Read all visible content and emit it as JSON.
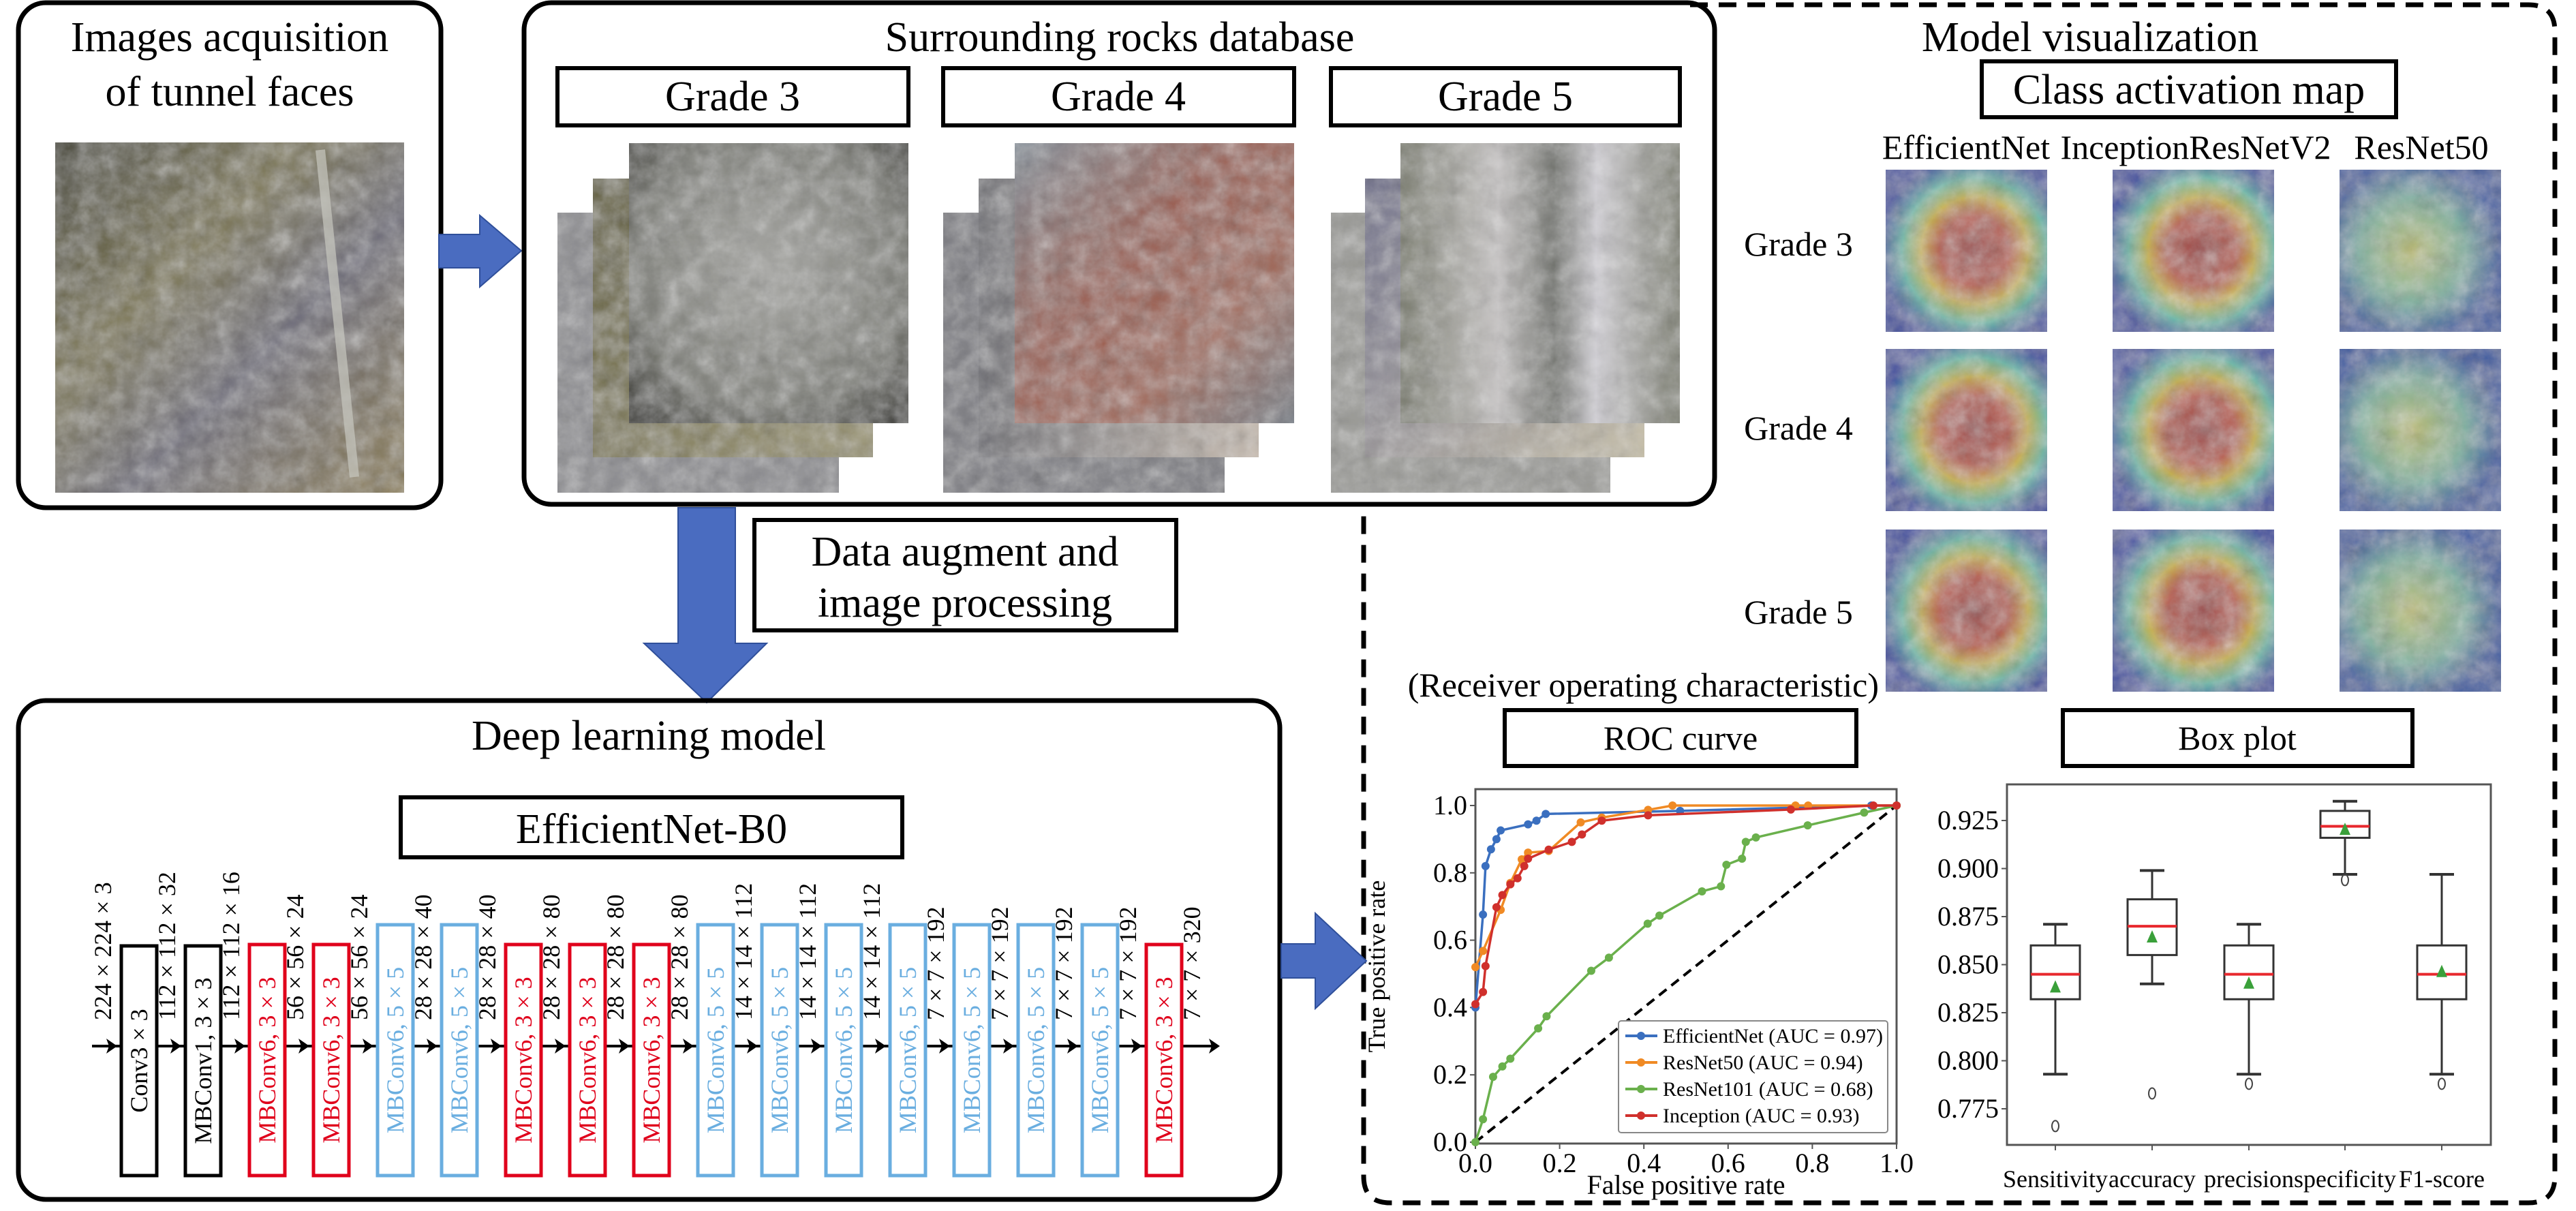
{
  "acquisition": {
    "title_line1": "Images acquisition",
    "title_line2": "of tunnel faces"
  },
  "database": {
    "title": "Surrounding rocks database",
    "grades": [
      "Grade 3",
      "Grade 4",
      "Grade 5"
    ]
  },
  "augment": {
    "line1": "Data augment and",
    "line2": "image processing"
  },
  "model": {
    "title": "Deep learning model",
    "network": "EfficientNet-B0",
    "input_size": "224 × 224 × 3",
    "layers": [
      {
        "label": "Conv3 × 3",
        "kind": "conv",
        "color": "#000000",
        "output": "112 × 112 × 32"
      },
      {
        "label": "MBConv1, 3 × 3",
        "kind": "conv",
        "color": "#000000",
        "output": "112 × 112 × 16"
      },
      {
        "label": "MBConv6, 3 × 3",
        "kind": "mb3",
        "color": "#e0001b",
        "output": "56 × 56 × 24"
      },
      {
        "label": "MBConv6, 3 × 3",
        "kind": "mb3",
        "color": "#e0001b",
        "output": "56 × 56 × 24"
      },
      {
        "label": "MBConv6, 5 × 5",
        "kind": "mb5",
        "color": "#6aaee0",
        "output": "28 × 28 × 40"
      },
      {
        "label": "MBConv6, 5 × 5",
        "kind": "mb5",
        "color": "#6aaee0",
        "output": "28 × 28 × 40"
      },
      {
        "label": "MBConv6, 3 × 3",
        "kind": "mb3",
        "color": "#e0001b",
        "output": "28 × 28 × 80"
      },
      {
        "label": "MBConv6, 3 × 3",
        "kind": "mb3",
        "color": "#e0001b",
        "output": "28 × 28 × 80"
      },
      {
        "label": "MBConv6, 3 × 3",
        "kind": "mb3",
        "color": "#e0001b",
        "output": "28 × 28 × 80"
      },
      {
        "label": "MBConv6, 5 × 5",
        "kind": "mb5",
        "color": "#6aaee0",
        "output": "14 × 14 × 112"
      },
      {
        "label": "MBConv6, 5 × 5",
        "kind": "mb5",
        "color": "#6aaee0",
        "output": "14 × 14 × 112"
      },
      {
        "label": "MBConv6, 5 × 5",
        "kind": "mb5",
        "color": "#6aaee0",
        "output": "14 × 14 × 112"
      },
      {
        "label": "MBConv6, 5 × 5",
        "kind": "mb5",
        "color": "#6aaee0",
        "output": "7 × 7 × 192"
      },
      {
        "label": "MBConv6, 5 × 5",
        "kind": "mb5",
        "color": "#6aaee0",
        "output": "7 × 7 × 192"
      },
      {
        "label": "MBConv6, 5 × 5",
        "kind": "mb5",
        "color": "#6aaee0",
        "output": "7 × 7 × 192"
      },
      {
        "label": "MBConv6, 5 × 5",
        "kind": "mb5",
        "color": "#6aaee0",
        "output": "7 × 7 × 192"
      },
      {
        "label": "MBConv6, 3 × 3",
        "kind": "mb3",
        "color": "#e0001b",
        "output": "7 × 7 × 320"
      }
    ]
  },
  "visualization": {
    "title": "Model visualization",
    "cam_title": "Class activation map",
    "models": [
      "EfficientNet",
      "InceptionResNetV2",
      "ResNet50"
    ],
    "grades": [
      "Grade 3",
      "Grade 4",
      "Grade 5"
    ]
  },
  "roc_caption": "(Receiver operating characteristic)",
  "colors": {
    "arrow": "#4a6cc0",
    "red_block": "#e0001b",
    "blue_block": "#6aaee0"
  },
  "chart_data": [
    {
      "type": "line",
      "title": "ROC curve",
      "xlabel": "False positive rate",
      "ylabel": "True positive rate",
      "xlim": [
        0,
        1
      ],
      "ylim": [
        0,
        1
      ],
      "xticks": [
        "0.0",
        "0.2",
        "0.4",
        "0.6",
        "0.8",
        "1.0"
      ],
      "yticks": [
        "0.0",
        "0.2",
        "0.4",
        "0.6",
        "0.8",
        "1.0"
      ],
      "legend": "bottom-right",
      "reference_line": "diagonal dashed",
      "series": [
        {
          "name": "EfficientNet (AUC = 0.97)",
          "color": "#3a6fbf",
          "points": [
            [
              0,
              0.4
            ],
            [
              0.018,
              0.676
            ],
            [
              0.024,
              0.82
            ],
            [
              0.037,
              0.87
            ],
            [
              0.05,
              0.9
            ],
            [
              0.06,
              0.926
            ],
            [
              0.125,
              0.944
            ],
            [
              0.145,
              0.955
            ],
            [
              0.167,
              0.975
            ],
            [
              0.486,
              0.984
            ],
            [
              0.94,
              1.0
            ],
            [
              1,
              1
            ]
          ]
        },
        {
          "name": "ResNet50 (AUC = 0.94)",
          "color": "#f08a24",
          "points": [
            [
              0,
              0.52
            ],
            [
              0.018,
              0.568
            ],
            [
              0.06,
              0.69
            ],
            [
              0.083,
              0.77
            ],
            [
              0.11,
              0.84
            ],
            [
              0.125,
              0.86
            ],
            [
              0.174,
              0.865
            ],
            [
              0.25,
              0.95
            ],
            [
              0.3,
              0.964
            ],
            [
              0.41,
              0.987
            ],
            [
              0.468,
              1.0
            ],
            [
              0.76,
              1.0
            ],
            [
              0.79,
              1.0
            ],
            [
              1,
              1
            ]
          ]
        },
        {
          "name": "ResNet101 (AUC = 0.68)",
          "color": "#6ab04c",
          "points": [
            [
              0,
              0
            ],
            [
              0.018,
              0.068
            ],
            [
              0.042,
              0.194
            ],
            [
              0.064,
              0.225
            ],
            [
              0.083,
              0.248
            ],
            [
              0.149,
              0.338
            ],
            [
              0.169,
              0.374
            ],
            [
              0.275,
              0.509
            ],
            [
              0.317,
              0.548
            ],
            [
              0.409,
              0.649
            ],
            [
              0.437,
              0.673
            ],
            [
              0.538,
              0.745
            ],
            [
              0.583,
              0.76
            ],
            [
              0.596,
              0.824
            ],
            [
              0.633,
              0.842
            ],
            [
              0.642,
              0.892
            ],
            [
              0.666,
              0.905
            ],
            [
              0.789,
              0.941
            ],
            [
              0.923,
              0.979
            ],
            [
              1,
              1
            ]
          ]
        },
        {
          "name": "Inception (AUC = 0.93)",
          "color": "#d0302c",
          "points": [
            [
              0,
              0.41
            ],
            [
              0.018,
              0.446
            ],
            [
              0.024,
              0.523
            ],
            [
              0.05,
              0.698
            ],
            [
              0.064,
              0.734
            ],
            [
              0.083,
              0.766
            ],
            [
              0.1,
              0.784
            ],
            [
              0.116,
              0.82
            ],
            [
              0.125,
              0.842
            ],
            [
              0.174,
              0.869
            ],
            [
              0.229,
              0.892
            ],
            [
              0.253,
              0.914
            ],
            [
              0.3,
              0.955
            ],
            [
              0.41,
              0.971
            ],
            [
              0.749,
              0.988
            ],
            [
              0.945,
              1.0
            ],
            [
              1,
              1
            ]
          ]
        }
      ]
    },
    {
      "type": "box",
      "title": "Box plot",
      "categories": [
        "Sensitivity",
        "accuracy",
        "precision",
        "specificity",
        "F1-score"
      ],
      "ylim": [
        0.762,
        0.943
      ],
      "yticks": [
        "0.775",
        "0.800",
        "0.825",
        "0.850",
        "0.875",
        "0.900",
        "0.925"
      ],
      "median_color": "#e8282d",
      "mean_color": "#3aa03a",
      "boxes": [
        {
          "whisker_low": 0.793,
          "q1": 0.832,
          "median": 0.845,
          "q3": 0.86,
          "whisker_high": 0.871,
          "mean": 0.838,
          "outliers": [
            0.766
          ]
        },
        {
          "whisker_low": 0.84,
          "q1": 0.855,
          "median": 0.87,
          "q3": 0.884,
          "whisker_high": 0.899,
          "mean": 0.864,
          "outliers": [
            0.783
          ]
        },
        {
          "whisker_low": 0.793,
          "q1": 0.832,
          "median": 0.845,
          "q3": 0.86,
          "whisker_high": 0.871,
          "mean": 0.84,
          "outliers": [
            0.788
          ]
        },
        {
          "whisker_low": 0.897,
          "q1": 0.916,
          "median": 0.922,
          "q3": 0.93,
          "whisker_high": 0.935,
          "mean": 0.92,
          "outliers": [
            0.894
          ]
        },
        {
          "whisker_low": 0.793,
          "q1": 0.832,
          "median": 0.845,
          "q3": 0.86,
          "whisker_high": 0.897,
          "mean": 0.846,
          "outliers": [
            0.788
          ]
        }
      ]
    }
  ]
}
